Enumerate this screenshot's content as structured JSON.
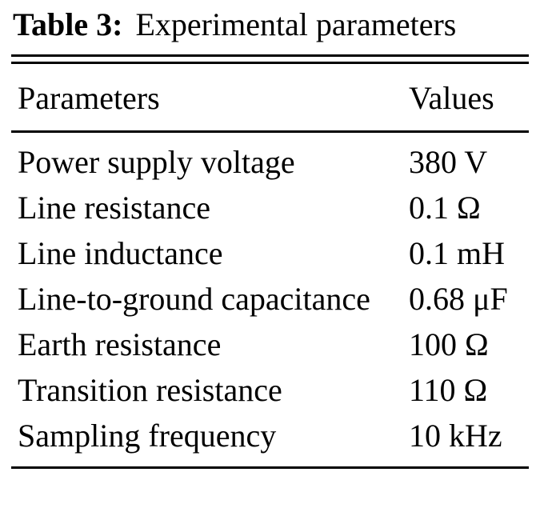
{
  "title": {
    "label": "Table 3:",
    "text": "Experimental parameters"
  },
  "table": {
    "headers": {
      "parameter": "Parameters",
      "value": "Values"
    },
    "rows": [
      {
        "parameter": "Power supply voltage",
        "value": "380 V"
      },
      {
        "parameter": "Line resistance",
        "value": "0.1 Ω"
      },
      {
        "parameter": "Line inductance",
        "value": "0.1 mH"
      },
      {
        "parameter": "Line-to-ground capacitance",
        "value": "0.68 μF"
      },
      {
        "parameter": "Earth resistance",
        "value": "100 Ω"
      },
      {
        "parameter": "Transition resistance",
        "value": "110 Ω"
      },
      {
        "parameter": "Sampling frequency",
        "value": "10 kHz"
      }
    ]
  },
  "chart_data": {
    "type": "table",
    "title": "Table 3: Experimental parameters",
    "columns": [
      "Parameters",
      "Values"
    ],
    "rows": [
      [
        "Power supply voltage",
        "380 V"
      ],
      [
        "Line resistance",
        "0.1 Ω"
      ],
      [
        "Line inductance",
        "0.1 mH"
      ],
      [
        "Line-to-ground capacitance",
        "0.68 μF"
      ],
      [
        "Earth resistance",
        "100 Ω"
      ],
      [
        "Transition resistance",
        "110 Ω"
      ],
      [
        "Sampling frequency",
        "10 kHz"
      ]
    ]
  }
}
